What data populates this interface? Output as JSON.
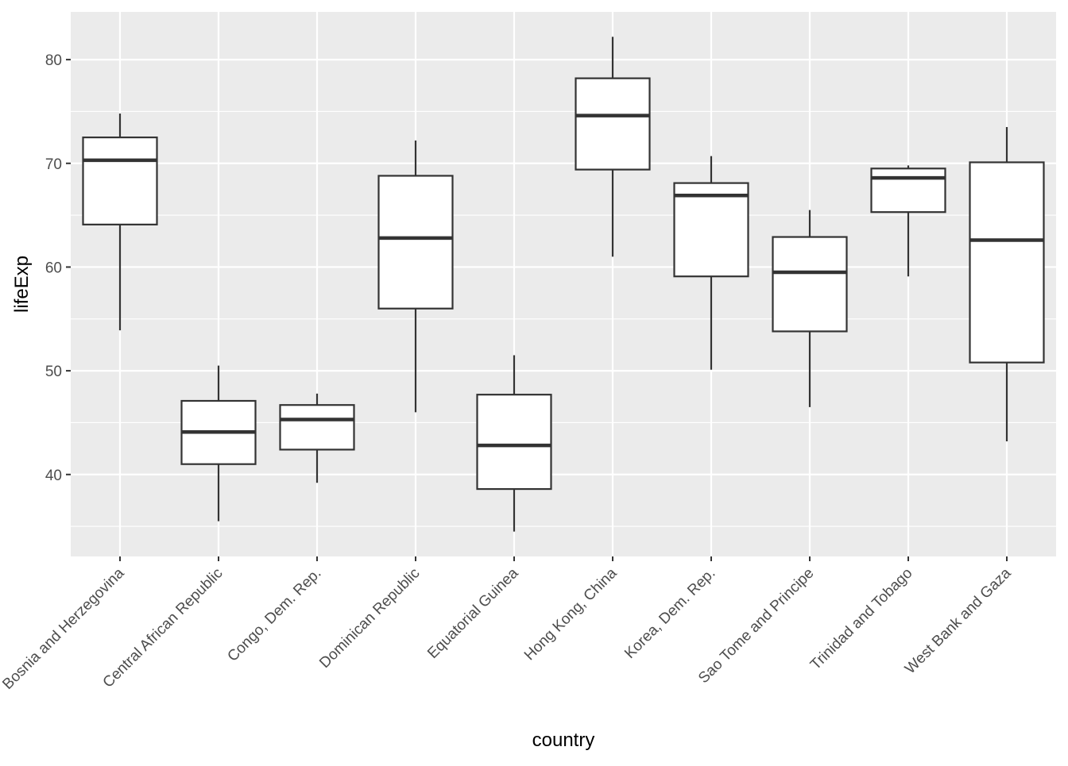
{
  "chart_data": {
    "type": "boxplot",
    "xlabel": "country",
    "ylabel": "lifeExp",
    "ylim": [
      32.1,
      84.6
    ],
    "yticks": [
      40,
      50,
      60,
      70,
      80
    ],
    "grid": true,
    "categories": [
      "Bosnia and Herzegovina",
      "Central African Republic",
      "Congo, Dem. Rep.",
      "Dominican Republic",
      "Equatorial Guinea",
      "Hong Kong, China",
      "Korea, Dem. Rep.",
      "Sao Tome and Principe",
      "Trinidad and Tobago",
      "West Bank and Gaza"
    ],
    "boxes": [
      {
        "min": 53.9,
        "q1": 64.1,
        "median": 70.3,
        "q3": 72.5,
        "max": 74.8
      },
      {
        "min": 35.5,
        "q1": 41.0,
        "median": 44.1,
        "q3": 47.1,
        "max": 50.5
      },
      {
        "min": 39.2,
        "q1": 42.4,
        "median": 45.3,
        "q3": 46.7,
        "max": 47.8
      },
      {
        "min": 46.0,
        "q1": 56.0,
        "median": 62.8,
        "q3": 68.8,
        "max": 72.2
      },
      {
        "min": 34.5,
        "q1": 38.6,
        "median": 42.8,
        "q3": 47.7,
        "max": 51.5
      },
      {
        "min": 61.0,
        "q1": 69.4,
        "median": 74.6,
        "q3": 78.2,
        "max": 82.2
      },
      {
        "min": 50.1,
        "q1": 59.1,
        "median": 66.9,
        "q3": 68.1,
        "max": 70.7
      },
      {
        "min": 46.5,
        "q1": 53.8,
        "median": 59.5,
        "q3": 62.9,
        "max": 65.5
      },
      {
        "min": 59.1,
        "q1": 65.3,
        "median": 68.6,
        "q3": 69.5,
        "max": 69.8
      },
      {
        "min": 43.2,
        "q1": 50.8,
        "median": 62.6,
        "q3": 70.1,
        "max": 73.5
      }
    ],
    "colors": {
      "panel": "#EBEBEB",
      "grid": "#FFFFFF",
      "box_fill": "#FFFFFF",
      "box_line": "#333333"
    }
  }
}
